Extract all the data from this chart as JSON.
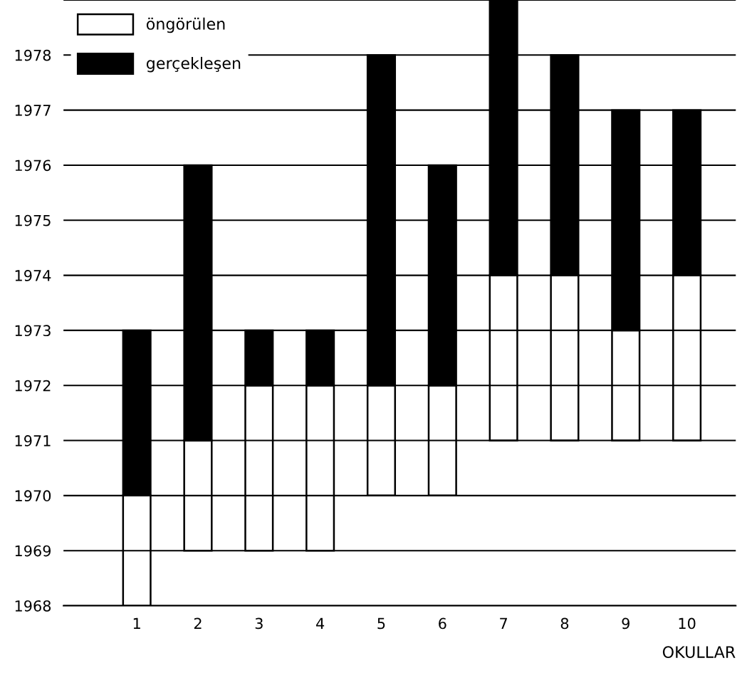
{
  "chart_data": {
    "type": "bar",
    "xlabel": "OKULLAR",
    "categories": [
      "1",
      "2",
      "3",
      "4",
      "5",
      "6",
      "7",
      "8",
      "9",
      "10"
    ],
    "series": [
      {
        "name": "öngörülen",
        "color": "#ffffff",
        "base": [
          1968,
          1969,
          1969,
          1969,
          1970,
          1970,
          1971,
          1971,
          1971,
          1971
        ],
        "values": [
          2,
          2,
          3,
          3,
          2,
          2,
          3,
          3,
          2,
          3
        ]
      },
      {
        "name": "gerçekleşen",
        "color": "#000000",
        "base": [
          1970,
          1971,
          1972,
          1972,
          1972,
          1972,
          1974,
          1974,
          1973,
          1974
        ],
        "values": [
          3,
          5,
          1,
          1,
          6,
          4,
          5,
          4,
          4,
          3
        ]
      }
    ],
    "ylim": [
      1968,
      1979
    ],
    "yticks": [
      1968,
      1969,
      1970,
      1971,
      1972,
      1973,
      1974,
      1975,
      1976,
      1977,
      1978,
      {
        "value": 1979,
        "label": null
      }
    ],
    "grid": "y",
    "legend": "top left"
  }
}
